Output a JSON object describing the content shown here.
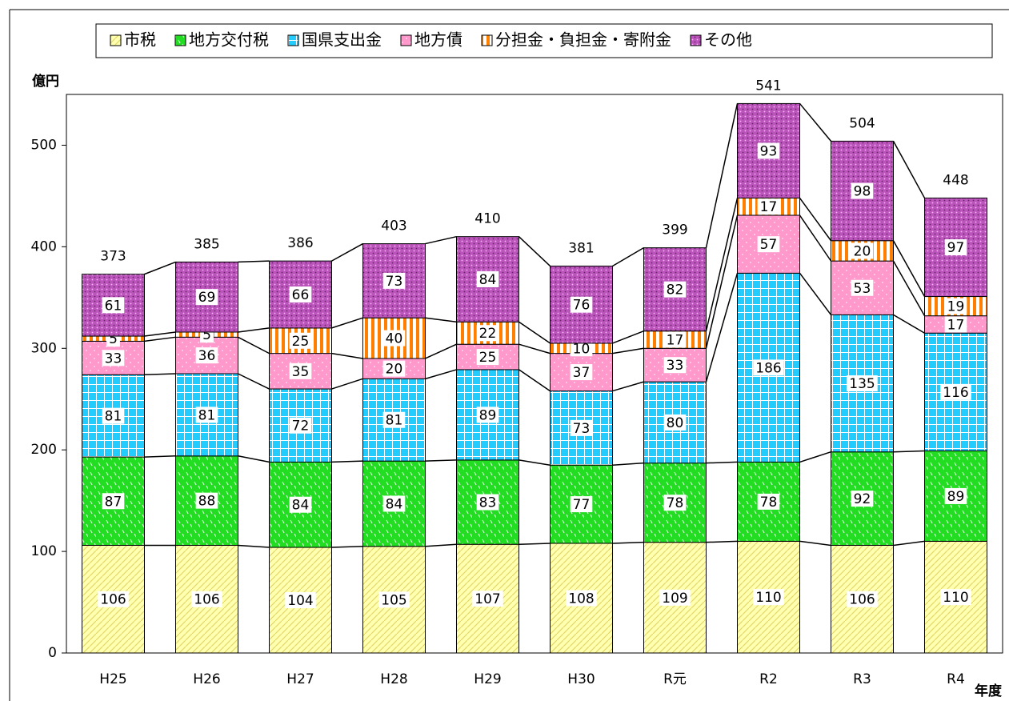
{
  "chart_data": {
    "type": "stacked-bar",
    "y_label": "億円",
    "x_label": "年度",
    "categories": [
      "H25",
      "H26",
      "H27",
      "H28",
      "H29",
      "H30",
      "R元",
      "R2",
      "R3",
      "R4"
    ],
    "series": [
      {
        "name": "市税",
        "color": "#ffffb0",
        "values": [
          106,
          106,
          104,
          105,
          107,
          108,
          109,
          110,
          106,
          110
        ]
      },
      {
        "name": "地方交付税",
        "color": "#22dd22",
        "values": [
          87,
          88,
          84,
          84,
          83,
          77,
          78,
          78,
          92,
          89
        ]
      },
      {
        "name": "国県支出金",
        "color": "#22ccff",
        "values": [
          81,
          81,
          72,
          81,
          89,
          73,
          80,
          186,
          135,
          116
        ]
      },
      {
        "name": "地方債",
        "color": "#ff99cc",
        "values": [
          33,
          36,
          35,
          20,
          25,
          37,
          33,
          57,
          53,
          17
        ]
      },
      {
        "name": "分担金・負担金・寄附金",
        "color": "#ff8000",
        "values": [
          5,
          5,
          25,
          40,
          22,
          10,
          17,
          17,
          20,
          19
        ]
      },
      {
        "name": "その他",
        "color": "#bb55bb",
        "values": [
          61,
          69,
          66,
          73,
          84,
          76,
          82,
          93,
          98,
          97
        ]
      }
    ],
    "totals": [
      373,
      385,
      386,
      403,
      410,
      381,
      399,
      541,
      504,
      448
    ],
    "ylim": [
      0,
      550
    ],
    "yticks": [
      0,
      100,
      200,
      300,
      400,
      500
    ]
  }
}
